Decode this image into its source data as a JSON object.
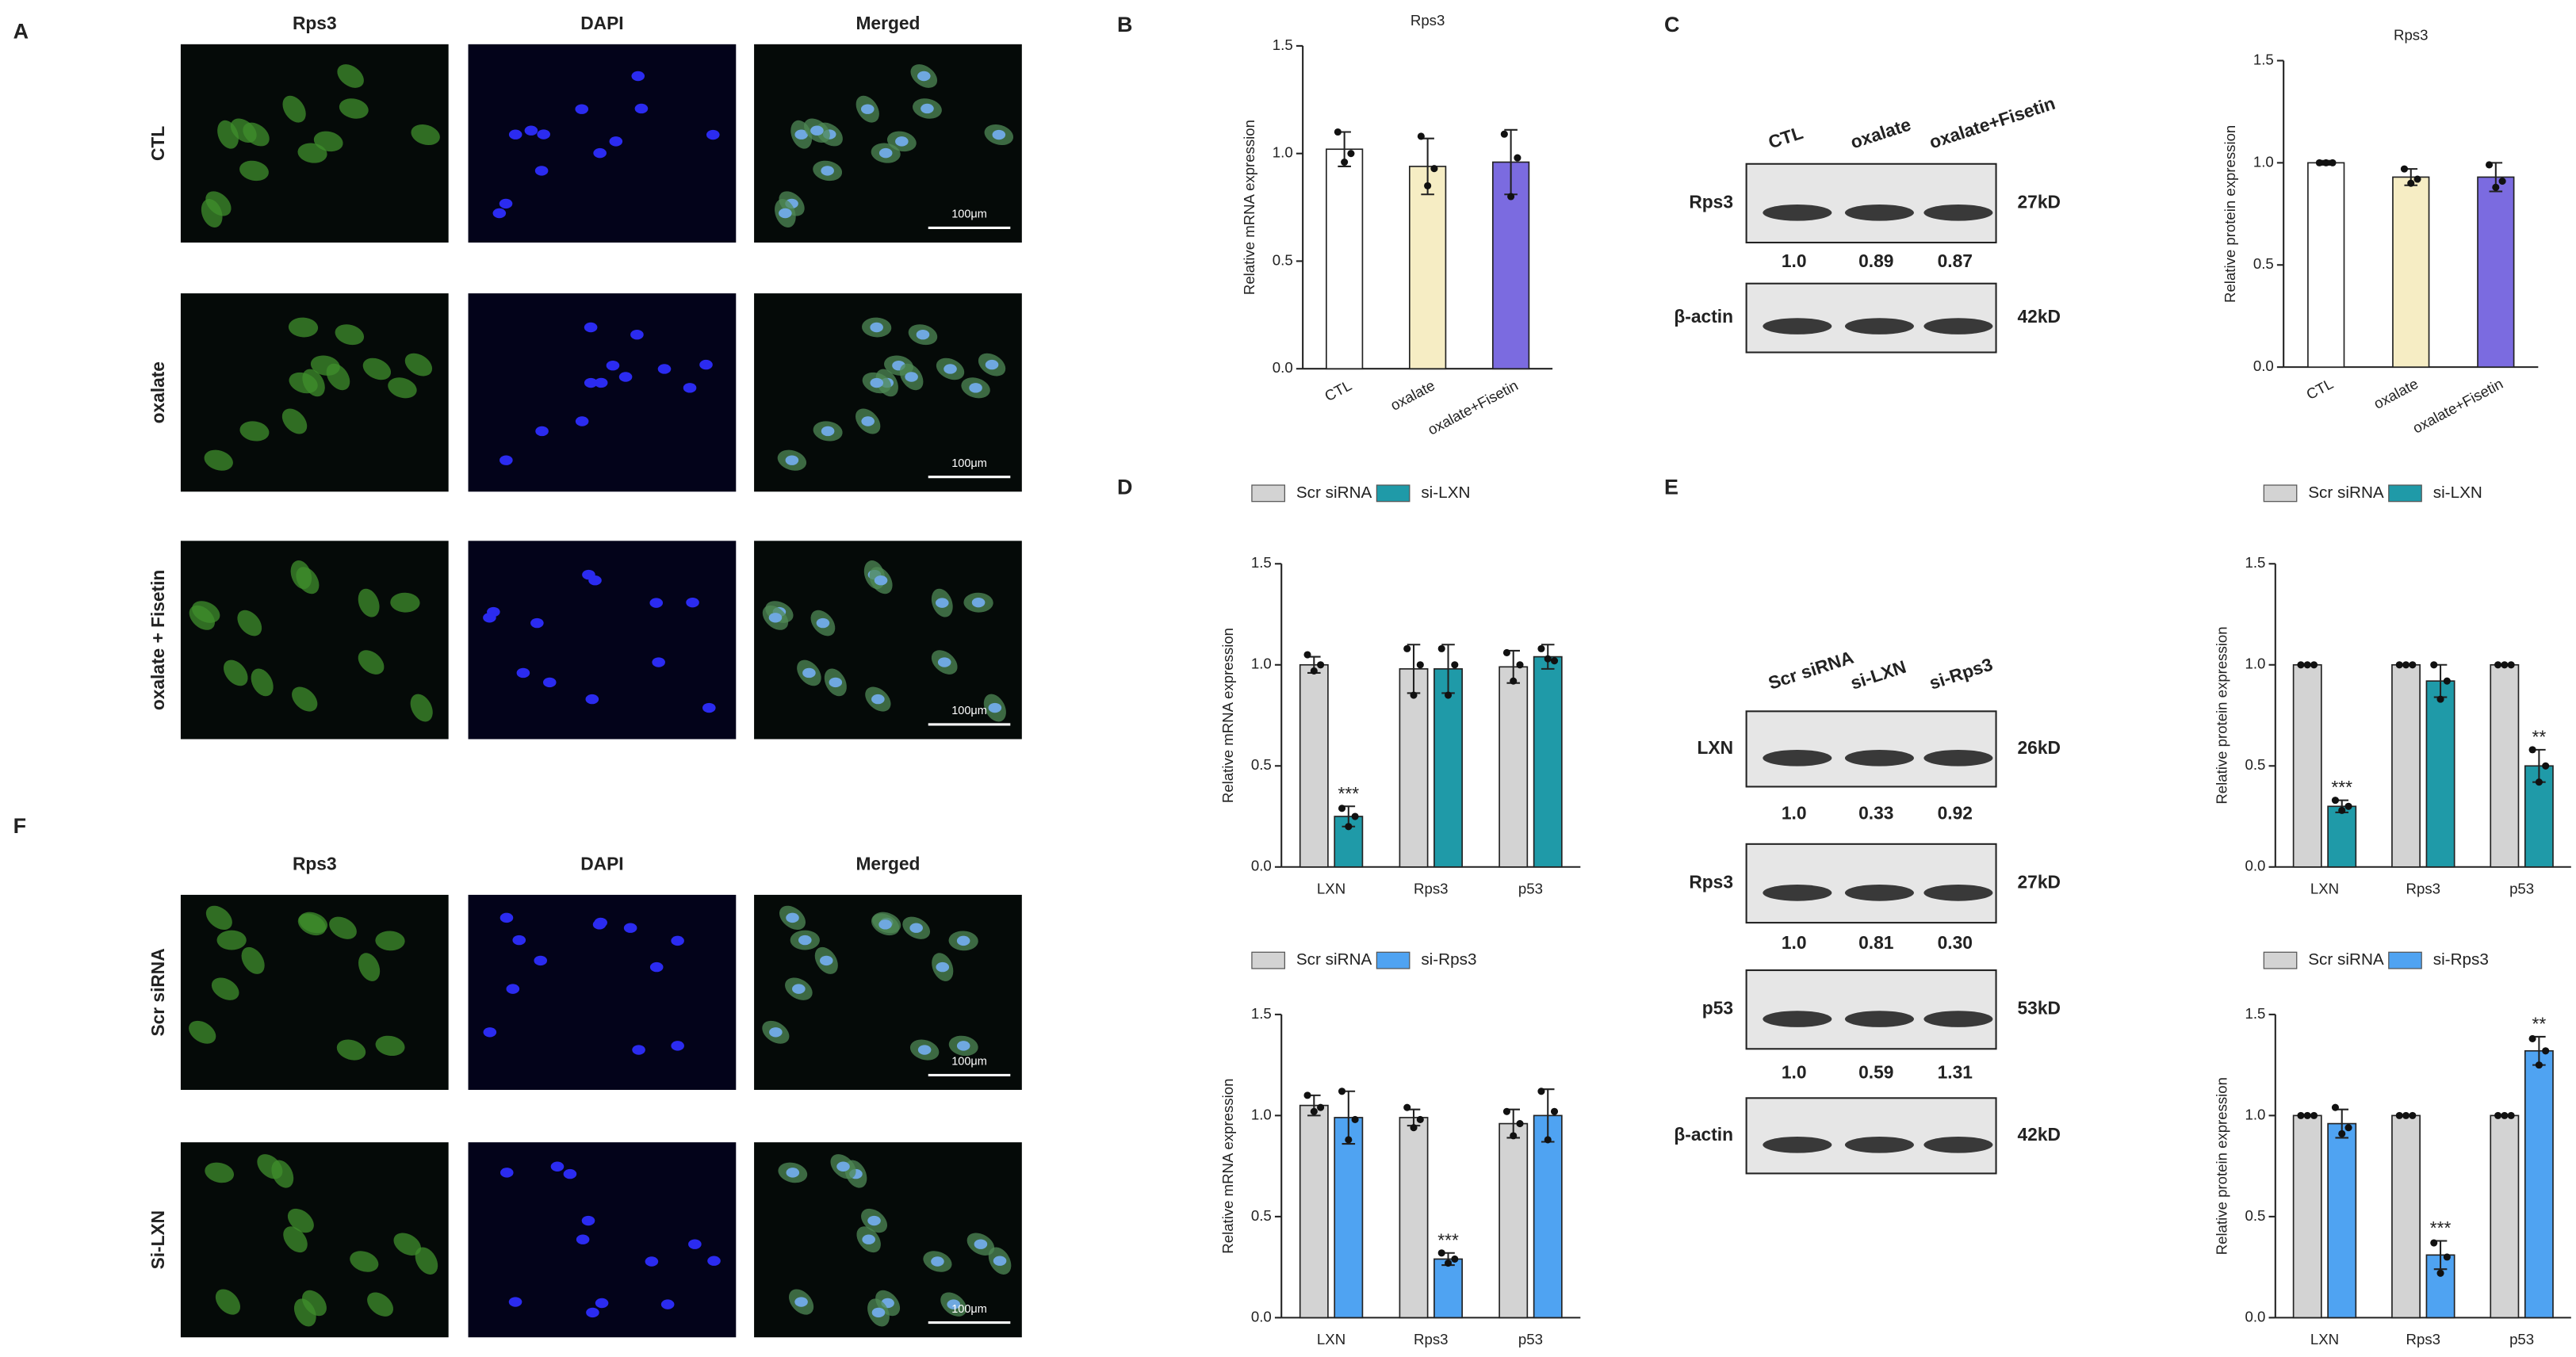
{
  "panel_letters": [
    "A",
    "B",
    "C",
    "D",
    "E",
    "F"
  ],
  "microscopy": [
    {
      "columns": [
        "Rps3",
        "DAPI",
        "Merged"
      ],
      "rows": [
        "CTL",
        "oxalate",
        "oxalate + Fisetin"
      ],
      "scale_bar": "100μm"
    },
    {
      "columns": [
        "Rps3",
        "DAPI",
        "Merged"
      ],
      "rows": [
        "Scr siRNA",
        "Si-LXN"
      ],
      "scale_bar": "100μm"
    }
  ],
  "blots": [
    {
      "lanes": [
        "CTL",
        "oxalate",
        "oxalate+Fisetin"
      ],
      "rows": [
        {
          "protein": "Rps3",
          "size": "27kD",
          "quant": [
            "1.0",
            "0.89",
            "0.87"
          ]
        },
        {
          "protein": "β-actin",
          "size": "42kD"
        }
      ]
    },
    {
      "lanes": [
        "Scr siRNA",
        "si-LXN",
        "si-Rps3"
      ],
      "rows": [
        {
          "protein": "LXN",
          "size": "26kD",
          "quant": [
            "1.0",
            "0.33",
            "0.92"
          ]
        },
        {
          "protein": "Rps3",
          "size": "27kD",
          "quant": [
            "1.0",
            "0.81",
            "0.30"
          ]
        },
        {
          "protein": "p53",
          "size": "53kD",
          "quant": [
            "1.0",
            "0.59",
            "1.31"
          ]
        },
        {
          "protein": "β-actin",
          "size": "42kD"
        }
      ]
    }
  ],
  "chart_data": [
    {
      "type": "bar",
      "title": "Rps3",
      "y_label": "Relative mRNA expression",
      "categories": [
        "CTL",
        "oxalate",
        "oxalate+Fisetin"
      ],
      "series": [
        {
          "colors": [
            "#ffffff",
            "#f6edc4",
            "#7b6be0"
          ],
          "values": [
            1.02,
            0.94,
            0.96
          ],
          "errors": [
            0.08,
            0.13,
            0.15
          ],
          "points": [
            [
              1.1,
              1.0,
              0.96
            ],
            [
              1.08,
              0.93,
              0.85
            ],
            [
              1.09,
              0.98,
              0.8
            ]
          ]
        }
      ],
      "ylim": [
        0,
        1.5
      ],
      "yticks": [
        {
          "value": 0,
          "label": "0.0"
        },
        0.5,
        {
          "value": 1,
          "label": "1.0"
        },
        1.5
      ]
    },
    {
      "type": "bar",
      "title": "Rps3",
      "y_label": "Relative protein expression",
      "categories": [
        "CTL",
        "oxalate",
        "oxalate+Fisetin"
      ],
      "series": [
        {
          "colors": [
            "#ffffff",
            "#f6edc4",
            "#7b6be0"
          ],
          "values": [
            1.0,
            0.93,
            0.93
          ],
          "errors": [
            0.01,
            0.04,
            0.07
          ],
          "points": [
            [
              1.0,
              1.0,
              1.0
            ],
            [
              0.97,
              0.92,
              0.9
            ],
            [
              0.99,
              0.91,
              0.88
            ]
          ]
        }
      ],
      "ylim": [
        0,
        1.5
      ],
      "yticks": [
        {
          "value": 0,
          "label": "0.0"
        },
        0.5,
        {
          "value": 1,
          "label": "1.0"
        },
        1.5
      ]
    },
    {
      "type": "bar",
      "y_label": "Relative mRNA expression",
      "categories": [
        "LXN",
        "Rps3",
        "p53"
      ],
      "legend": true,
      "series": [
        {
          "name": "Scr siRNA",
          "color": "#d3d3d3",
          "values": [
            1.0,
            0.98,
            0.99
          ],
          "errors": [
            0.04,
            0.12,
            0.08
          ],
          "points": [
            [
              1.05,
              1.0,
              0.97
            ],
            [
              1.08,
              1.0,
              0.85
            ],
            [
              1.06,
              1.0,
              0.92
            ]
          ]
        },
        {
          "name": "si-LXN",
          "color": "#1f9aa8",
          "values": [
            0.25,
            0.98,
            1.04
          ],
          "errors": [
            0.05,
            0.12,
            0.06
          ],
          "points": [
            [
              0.29,
              0.25,
              0.2
            ],
            [
              1.08,
              1.0,
              0.85
            ],
            [
              1.08,
              1.02,
              1.03
            ]
          ],
          "annotations": [
            "***",
            null,
            null
          ]
        }
      ],
      "ylim": [
        0,
        1.5
      ],
      "yticks": [
        {
          "value": 0,
          "label": "0.0"
        },
        0.5,
        {
          "value": 1,
          "label": "1.0"
        },
        1.5
      ]
    },
    {
      "type": "bar",
      "y_label": "Relative mRNA expression",
      "categories": [
        "LXN",
        "Rps3",
        "p53"
      ],
      "legend": true,
      "series": [
        {
          "name": "Scr siRNA",
          "color": "#d3d3d3",
          "values": [
            1.05,
            0.99,
            0.96
          ],
          "errors": [
            0.05,
            0.04,
            0.07
          ],
          "points": [
            [
              1.1,
              1.04,
              1.02
            ],
            [
              1.04,
              0.98,
              0.94
            ],
            [
              1.02,
              0.96,
              0.9
            ]
          ]
        },
        {
          "name": "si-Rps3",
          "color": "#4fa3f2",
          "values": [
            0.99,
            0.29,
            1.0
          ],
          "errors": [
            0.13,
            0.03,
            0.13
          ],
          "points": [
            [
              1.12,
              0.98,
              0.88
            ],
            [
              0.32,
              0.29,
              0.27
            ],
            [
              1.12,
              1.02,
              0.88
            ]
          ],
          "annotations": [
            null,
            "***",
            null
          ]
        }
      ],
      "ylim": [
        0,
        1.5
      ],
      "yticks": [
        {
          "value": 0,
          "label": "0.0"
        },
        0.5,
        {
          "value": 1,
          "label": "1.0"
        },
        1.5
      ]
    },
    {
      "type": "bar",
      "y_label": "Relative protein expression",
      "categories": [
        "LXN",
        "Rps3",
        "p53"
      ],
      "legend": true,
      "series": [
        {
          "name": "Scr siRNA",
          "color": "#d3d3d3",
          "values": [
            1.0,
            1.0,
            1.0
          ],
          "errors": [
            0,
            0,
            0
          ],
          "points": [
            [
              1.0,
              1.0,
              1.0
            ],
            [
              1.0,
              1.0,
              1.0
            ],
            [
              1.0,
              1.0,
              1.0
            ]
          ]
        },
        {
          "name": "si-LXN",
          "color": "#1f9aa8",
          "values": [
            0.3,
            0.92,
            0.5
          ],
          "errors": [
            0.03,
            0.08,
            0.08
          ],
          "points": [
            [
              0.33,
              0.3,
              0.28
            ],
            [
              1.0,
              0.92,
              0.83
            ],
            [
              0.58,
              0.5,
              0.42
            ]
          ],
          "annotations": [
            "***",
            null,
            "**"
          ]
        }
      ],
      "ylim": [
        0,
        1.5
      ],
      "yticks": [
        {
          "value": 0,
          "label": "0.0"
        },
        0.5,
        {
          "value": 1,
          "label": "1.0"
        },
        1.5
      ]
    },
    {
      "type": "bar",
      "y_label": "Relative protein expression",
      "categories": [
        "LXN",
        "Rps3",
        "p53"
      ],
      "legend": true,
      "series": [
        {
          "name": "Scr siRNA",
          "color": "#d3d3d3",
          "values": [
            1.0,
            1.0,
            1.0
          ],
          "errors": [
            0,
            0,
            0
          ],
          "points": [
            [
              1.0,
              1.0,
              1.0
            ],
            [
              1.0,
              1.0,
              1.0
            ],
            [
              1.0,
              1.0,
              1.0
            ]
          ]
        },
        {
          "name": "si-Rps3",
          "color": "#4fa3f2",
          "values": [
            0.96,
            0.31,
            1.32
          ],
          "errors": [
            0.07,
            0.07,
            0.07
          ],
          "points": [
            [
              1.04,
              0.94,
              0.91
            ],
            [
              0.37,
              0.3,
              0.22
            ],
            [
              1.38,
              1.32,
              1.25
            ]
          ],
          "annotations": [
            null,
            "***",
            "**"
          ]
        }
      ],
      "ylim": [
        0,
        1.5
      ],
      "yticks": [
        {
          "value": 0,
          "label": "0.0"
        },
        0.5,
        {
          "value": 1,
          "label": "1.0"
        },
        1.5
      ]
    }
  ]
}
